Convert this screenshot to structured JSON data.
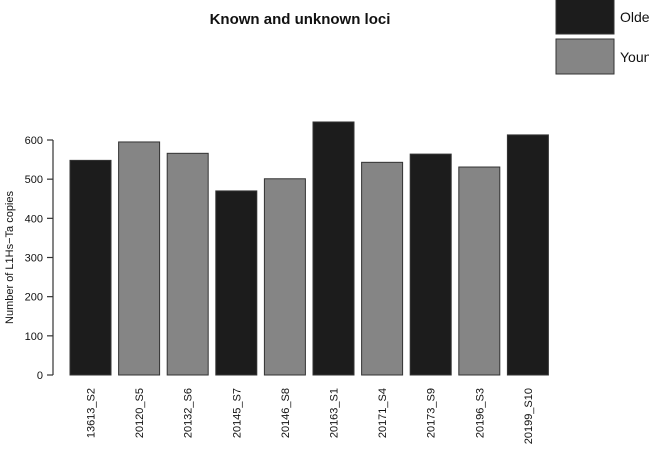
{
  "chart_data": {
    "type": "bar",
    "title": "Known and unknown loci",
    "xlabel": "",
    "ylabel": "Number of L1Hs−Ta copies",
    "ylim": [
      0,
      650
    ],
    "yticks": [
      0,
      100,
      200,
      300,
      400,
      500,
      600
    ],
    "grid": false,
    "legend_placement": "top-right",
    "legend": [
      {
        "name": "Older",
        "color": "#1c1c1c"
      },
      {
        "name": "Younger",
        "color": "#858585"
      }
    ],
    "categories": [
      "13613_S2",
      "20120_S5",
      "20132_S6",
      "20145_S7",
      "20146_S8",
      "20163_S1",
      "20171_S4",
      "20173_S9",
      "20196_S3",
      "20199_S10"
    ],
    "values": [
      548,
      595,
      566,
      470,
      501,
      646,
      543,
      564,
      531,
      613
    ],
    "groups": [
      "Older",
      "Younger",
      "Younger",
      "Older",
      "Younger",
      "Older",
      "Younger",
      "Older",
      "Younger",
      "Older"
    ]
  }
}
